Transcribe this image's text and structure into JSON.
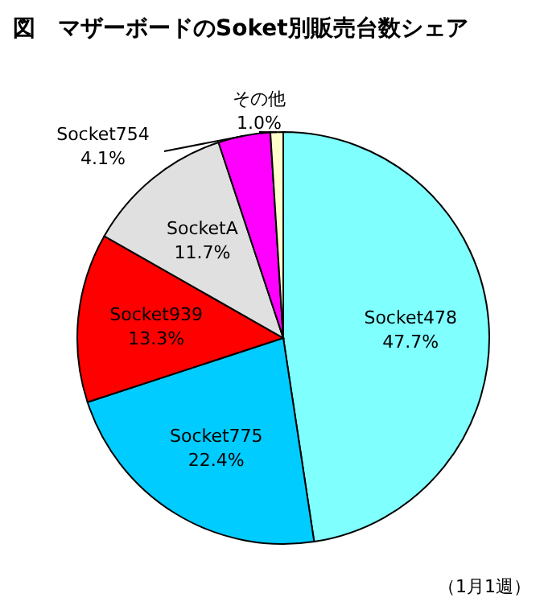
{
  "chart_data": {
    "type": "pie",
    "title": "図　マザーボードのSoket別販売台数シェア",
    "categories": [
      "Socket478",
      "Socket775",
      "Socket939",
      "SocketA",
      "Socket754",
      "その他"
    ],
    "values": [
      47.7,
      22.4,
      13.3,
      11.7,
      4.1,
      1.0
    ],
    "value_labels": [
      "47.7%",
      "22.4%",
      "13.3%",
      "11.7%",
      "4.1%",
      "1.0%"
    ],
    "colors": [
      "#80ffff",
      "#00ccff",
      "#ff0000",
      "#e0e0e0",
      "#ff00ff",
      "#ffffcc"
    ],
    "annotations": [
      "（1月1週）"
    ]
  }
}
